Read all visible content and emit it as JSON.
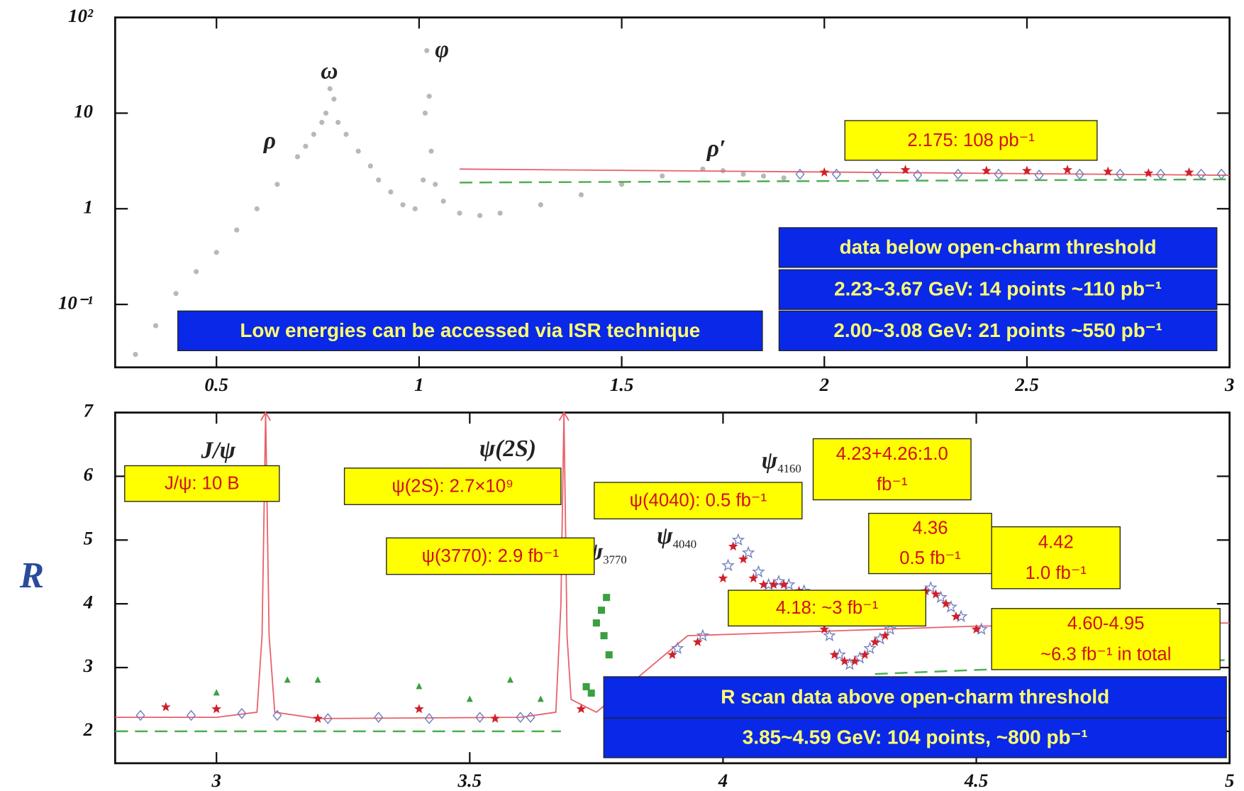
{
  "chart_data": [
    {
      "type": "scatter",
      "ylog": true,
      "xlim": [
        0.25,
        3
      ],
      "xticks": [
        0.5,
        1,
        1.5,
        2,
        2.5,
        3
      ],
      "ylim": [
        0.022,
        100
      ],
      "yticks": [
        {
          "value": 100,
          "label": "10²"
        },
        10,
        1,
        {
          "value": 0.1,
          "label": "10⁻¹"
        }
      ],
      "resonances": [
        "ρ",
        "ω",
        "φ",
        "ρ′"
      ],
      "boxes": [
        {
          "style": "yellow",
          "lines": [
            "2.175: 108 pb⁻¹"
          ]
        },
        {
          "style": "blue",
          "lines": [
            "data below open-charm threshold"
          ]
        },
        {
          "style": "blue",
          "lines": [
            "2.23~3.67 GeV: 14 points ~110 pb⁻¹"
          ]
        },
        {
          "style": "blue",
          "lines": [
            "2.00~3.08 GeV: 21 points ~550 pb⁻¹"
          ]
        },
        {
          "style": "blue",
          "lines": [
            "Low energies can be accessed via ISR technique"
          ]
        }
      ],
      "series": [
        {
          "marker": "dot",
          "color": "#b8b8b8",
          "x": [
            0.3,
            0.35,
            0.4,
            0.45,
            0.5,
            0.55,
            0.6,
            0.65,
            0.7,
            0.72,
            0.74,
            0.76,
            0.77,
            0.78,
            0.79,
            0.8,
            0.82,
            0.85,
            0.88,
            0.9,
            0.93,
            0.96,
            0.99,
            1.01,
            1.015,
            1.019,
            1.025,
            1.03,
            1.04,
            1.06,
            1.1,
            1.15,
            1.2,
            1.3,
            1.4,
            1.5,
            1.6,
            1.7,
            1.75,
            1.8,
            1.85,
            1.9
          ],
          "values": [
            0.03,
            0.06,
            0.13,
            0.22,
            0.35,
            0.6,
            1.0,
            1.8,
            3.5,
            4.5,
            6,
            8,
            10,
            18,
            14,
            8,
            6,
            4,
            2.8,
            2.0,
            1.5,
            1.1,
            1.0,
            2,
            10,
            45,
            15,
            4,
            1.8,
            1.2,
            0.9,
            0.85,
            0.9,
            1.1,
            1.4,
            1.8,
            2.2,
            2.6,
            2.5,
            2.3,
            2.2,
            2.1
          ]
        },
        {
          "marker": "line",
          "color": "#e8606a",
          "x": [
            1.1,
            3.0
          ],
          "values": [
            2.6,
            2.24
          ]
        },
        {
          "marker": "dashed",
          "color": "#4caf50",
          "x": [
            1.1,
            3.0
          ],
          "values": [
            1.88,
            2.03
          ]
        },
        {
          "marker": "star",
          "color": "#d0202a",
          "x": [
            2.0,
            2.2,
            2.4,
            2.5,
            2.6,
            2.7,
            2.8,
            2.9
          ],
          "values": [
            2.4,
            2.55,
            2.5,
            2.5,
            2.55,
            2.45,
            2.35,
            2.4
          ]
        },
        {
          "marker": "diamond",
          "color": "#7080c0",
          "x": [
            1.94,
            2.03,
            2.13,
            2.23,
            2.33,
            2.43,
            2.53,
            2.63,
            2.73,
            2.83,
            2.93,
            2.98
          ],
          "values": [
            2.3,
            2.3,
            2.3,
            2.25,
            2.3,
            2.3,
            2.25,
            2.3,
            2.3,
            2.3,
            2.3,
            2.3
          ]
        }
      ]
    },
    {
      "type": "scatter",
      "ylog": false,
      "ylabel": "R",
      "xlim": [
        2.8,
        5
      ],
      "xticks": [
        3,
        3.5,
        4,
        4.5,
        5
      ],
      "ylim": [
        1.5,
        7
      ],
      "yticks": [
        2,
        3,
        4,
        5,
        6,
        7
      ],
      "resonances": [
        {
          "symbol": "J/ψ"
        },
        {
          "symbol": "ψ(2S)"
        },
        {
          "symbol": "ψ",
          "sub": "3770"
        },
        {
          "symbol": "ψ",
          "sub": "4040"
        },
        {
          "symbol": "ψ",
          "sub": "4160"
        }
      ],
      "boxes": [
        {
          "style": "yellow",
          "lines": [
            "J/ψ: 10 B"
          ]
        },
        {
          "style": "yellow",
          "lines": [
            "ψ(2S): 2.7×10⁹"
          ]
        },
        {
          "style": "yellow",
          "lines": [
            "ψ(4040): 0.5 fb⁻¹"
          ]
        },
        {
          "style": "yellow",
          "lines": [
            "4.23+4.26:1.0",
            "fb⁻¹"
          ]
        },
        {
          "style": "yellow",
          "lines": [
            "ψ(3770): 2.9 fb⁻¹"
          ]
        },
        {
          "style": "yellow",
          "lines": [
            "4.36",
            "0.5 fb⁻¹"
          ]
        },
        {
          "style": "yellow",
          "lines": [
            "4.42",
            "1.0 fb⁻¹"
          ]
        },
        {
          "style": "yellow",
          "lines": [
            "4.18: ~3 fb⁻¹"
          ]
        },
        {
          "style": "yellow",
          "lines": [
            "4.60-4.95",
            "~6.3 fb⁻¹ in total"
          ]
        },
        {
          "style": "blue",
          "lines": [
            "R scan data above open-charm threshold"
          ]
        },
        {
          "style": "blue",
          "lines": [
            "3.85~4.59 GeV:  104 points, ~800 pb⁻¹"
          ]
        }
      ],
      "series": [
        {
          "marker": "line",
          "color": "#e8606a",
          "x": [
            2.8,
            3.0,
            3.08,
            3.09,
            3.097,
            3.104,
            3.115,
            3.2,
            3.6,
            3.67,
            3.68,
            3.686,
            3.692,
            3.7,
            3.75,
            3.93,
            4.5,
            5.0
          ],
          "values": [
            2.22,
            2.22,
            2.3,
            3.5,
            7,
            3.5,
            2.3,
            2.2,
            2.22,
            2.3,
            4,
            7,
            3.5,
            2.5,
            2.3,
            3.5,
            3.65,
            3.7
          ]
        },
        {
          "marker": "dashed",
          "color": "#4caf50",
          "x": [
            2.8,
            3.68,
            3.69,
            4.3,
            5.0
          ],
          "values": [
            2.0,
            2.0,
            null,
            2.9,
            3.12
          ]
        },
        {
          "marker": "diamond",
          "color": "#7080c0",
          "x": [
            2.85,
            2.95,
            3.05,
            3.12,
            3.22,
            3.32,
            3.42,
            3.52,
            3.6,
            3.62
          ],
          "values": [
            2.25,
            2.25,
            2.28,
            2.25,
            2.2,
            2.22,
            2.2,
            2.22,
            2.22,
            2.22
          ]
        },
        {
          "marker": "triangle",
          "color": "#3aa040",
          "x": [
            3.0,
            3.14,
            3.2,
            3.4,
            3.5,
            3.58,
            3.64
          ],
          "values": [
            2.6,
            2.8,
            2.8,
            2.7,
            2.5,
            2.8,
            2.5
          ]
        },
        {
          "marker": "square",
          "color": "#3aa040",
          "x": [
            3.73,
            3.74,
            3.75,
            3.76,
            3.765,
            3.77,
            3.775
          ],
          "values": [
            2.7,
            2.6,
            3.7,
            3.9,
            3.5,
            4.1,
            3.2
          ]
        },
        {
          "marker": "star-open",
          "color": "#7080c0",
          "x": [
            3.91,
            3.96,
            4.01,
            4.03,
            4.05,
            4.07,
            4.09,
            4.11,
            4.13,
            4.16,
            4.19,
            4.21,
            4.23,
            4.25,
            4.27,
            4.29,
            4.31,
            4.33,
            4.36,
            4.39,
            4.41,
            4.43,
            4.45,
            4.47,
            4.51
          ],
          "values": [
            3.3,
            3.5,
            4.6,
            5.0,
            4.8,
            4.5,
            4.3,
            4.35,
            4.3,
            4.2,
            3.9,
            3.5,
            3.2,
            3.05,
            3.15,
            3.3,
            3.45,
            3.6,
            3.9,
            4.1,
            4.25,
            4.1,
            3.95,
            3.8,
            3.6
          ]
        },
        {
          "marker": "star",
          "color": "#d0202a",
          "x": [
            2.9,
            3.0,
            3.2,
            3.4,
            3.55,
            3.72,
            3.9,
            3.95,
            4.0,
            4.02,
            4.04,
            4.06,
            4.08,
            4.1,
            4.12,
            4.15,
            4.18,
            4.2,
            4.22,
            4.24,
            4.26,
            4.28,
            4.3,
            4.32,
            4.35,
            4.38,
            4.4,
            4.42,
            4.44,
            4.46,
            4.5,
            4.55,
            4.59
          ],
          "values": [
            2.38,
            2.35,
            2.2,
            2.35,
            2.2,
            2.35,
            3.2,
            3.4,
            4.4,
            4.9,
            4.7,
            4.4,
            4.3,
            4.3,
            4.3,
            4.2,
            4.0,
            3.6,
            3.2,
            3.1,
            3.1,
            3.2,
            3.4,
            3.5,
            3.8,
            4.0,
            4.2,
            4.15,
            4.0,
            3.8,
            3.6,
            3.5,
            3.5
          ]
        }
      ]
    }
  ]
}
